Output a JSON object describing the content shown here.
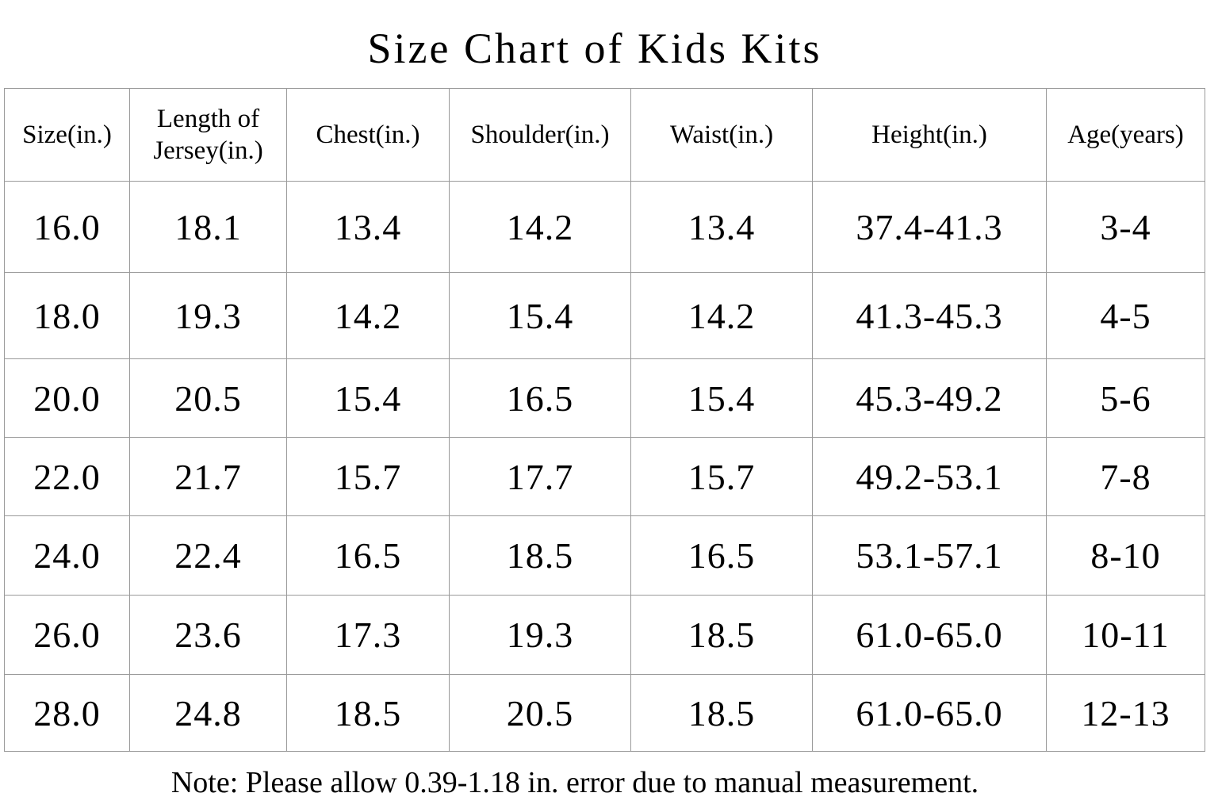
{
  "title": "Size Chart of Kids Kits",
  "table": {
    "headers": [
      "Size(in.)",
      "Length of\nJersey(in.)",
      "Chest(in.)",
      "Shoulder(in.)",
      "Waist(in.)",
      "Height(in.)",
      "Age(years)"
    ],
    "rows": [
      [
        "16.0",
        "18.1",
        "13.4",
        "14.2",
        "13.4",
        "37.4-41.3",
        "3-4"
      ],
      [
        "18.0",
        "19.3",
        "14.2",
        "15.4",
        "14.2",
        "41.3-45.3",
        "4-5"
      ],
      [
        "20.0",
        "20.5",
        "15.4",
        "16.5",
        "15.4",
        "45.3-49.2",
        "5-6"
      ],
      [
        "22.0",
        "21.7",
        "15.7",
        "17.7",
        "15.7",
        "49.2-53.1",
        "7-8"
      ],
      [
        "24.0",
        "22.4",
        "16.5",
        "18.5",
        "16.5",
        "53.1-57.1",
        "8-10"
      ],
      [
        "26.0",
        "23.6",
        "17.3",
        "19.3",
        "18.5",
        "61.0-65.0",
        "10-11"
      ],
      [
        "28.0",
        "24.8",
        "18.5",
        "20.5",
        "18.5",
        "61.0-65.0",
        "12-13"
      ]
    ]
  },
  "note": "Note: Please allow 0.39-1.18 in. error due to manual measurement.",
  "colors": {
    "text": "#000000",
    "border": "#9a9a9a",
    "background": "#ffffff"
  }
}
